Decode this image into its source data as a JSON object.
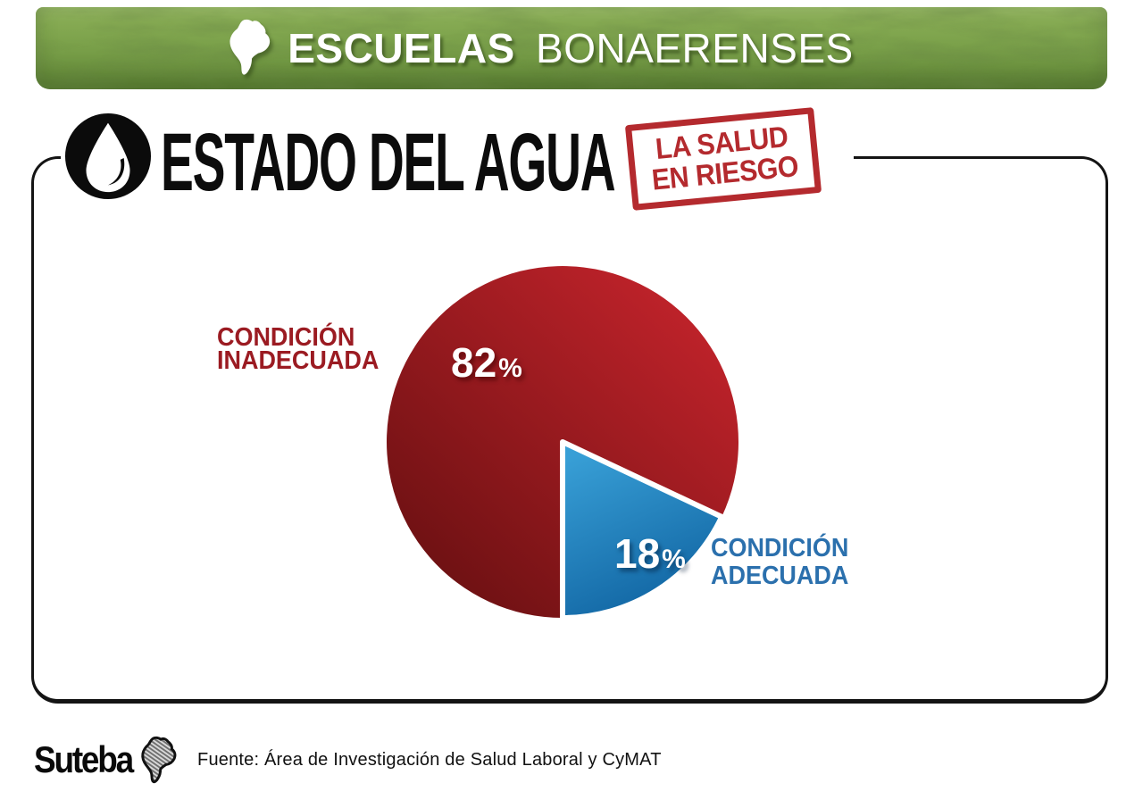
{
  "header": {
    "brand_bold": "ESCUELAS",
    "brand_light": "BONAERENSES",
    "background_color": "#7da34c"
  },
  "title": {
    "text": "ESTADO DEL AGUA",
    "stamp_line1": "LA SALUD",
    "stamp_line2": "EN RIESGO",
    "stamp_color": "#b42a2e"
  },
  "chart_data": {
    "type": "pie",
    "title": "ESTADO DEL AGUA",
    "categories": [
      "CONDICIÓN INADECUADA",
      "CONDICIÓN ADECUADA"
    ],
    "values": [
      82,
      18
    ],
    "start_angle_deg": 90,
    "direction": "clockwise",
    "legend_position": "inline-callouts",
    "slices": [
      {
        "label": "CONDICIÓN INADECUADA",
        "label_line1": "CONDICIÓN",
        "label_line2": "INADECUADA",
        "value": 82,
        "unit": "%",
        "color_start": "#c2232b",
        "color_end": "#6e1113",
        "label_color": "#9b1b22",
        "outlined": false
      },
      {
        "label": "CONDICIÓN ADECUADA",
        "label_line1": "CONDICIÓN",
        "label_line2": "ADECUADA",
        "value": 18,
        "unit": "%",
        "color_start": "#389fd6",
        "color_end": "#0f62a0",
        "label_color": "#2b70ad",
        "outlined": true
      }
    ]
  },
  "icons": {
    "header_icon": "buenos-aires-province-map-icon",
    "title_icon": "water-drop-icon",
    "footer_icon": "suteba-province-map-icon"
  },
  "footer": {
    "logo": "Suteba",
    "source": "Fuente: Área de Investigación de Salud Laboral y CyMAT"
  }
}
